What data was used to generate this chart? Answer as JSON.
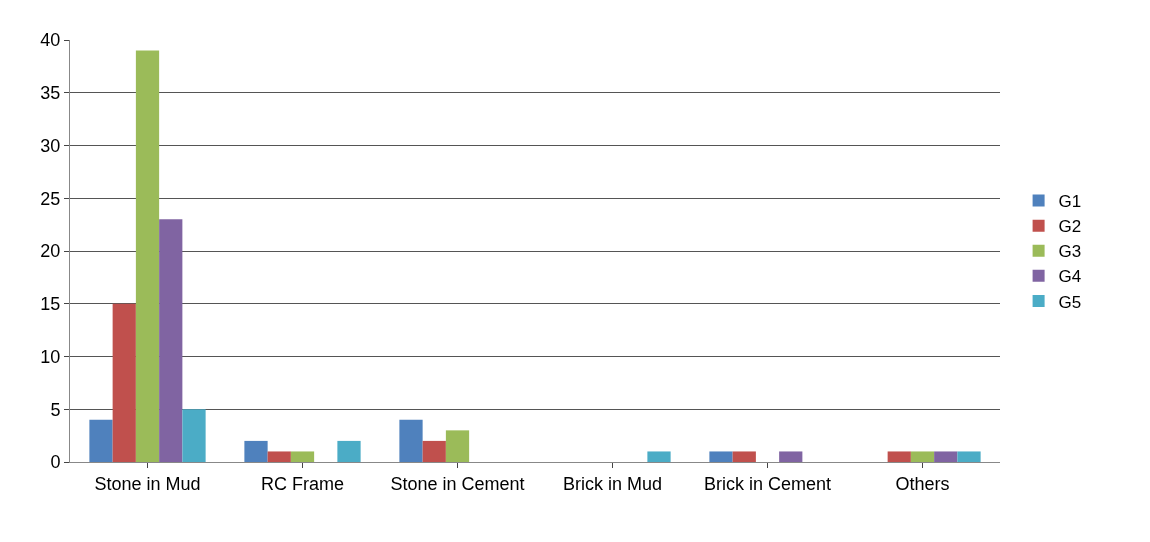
{
  "chart_data": {
    "type": "bar",
    "categories": [
      "Stone in Mud",
      "RC Frame",
      "Stone in Cement",
      "Brick in Mud",
      "Brick in Cement",
      "Others"
    ],
    "series": [
      {
        "name": "G1",
        "color": "#4f81bd",
        "values": [
          4,
          2,
          4,
          0,
          1,
          0
        ]
      },
      {
        "name": "G2",
        "color": "#c0504d",
        "values": [
          15,
          1,
          2,
          0,
          1,
          1
        ]
      },
      {
        "name": "G3",
        "color": "#9bbb59",
        "values": [
          39,
          1,
          3,
          0,
          0,
          1
        ]
      },
      {
        "name": "G4",
        "color": "#8064a2",
        "values": [
          23,
          0,
          0,
          0,
          1,
          1
        ]
      },
      {
        "name": "G5",
        "color": "#4bacc6",
        "values": [
          5,
          2,
          0,
          1,
          0,
          1
        ]
      }
    ],
    "ylim": [
      0,
      40
    ],
    "yticks": [
      0,
      5,
      10,
      15,
      20,
      25,
      30,
      35,
      40
    ],
    "grid": "y",
    "legend": "right"
  }
}
